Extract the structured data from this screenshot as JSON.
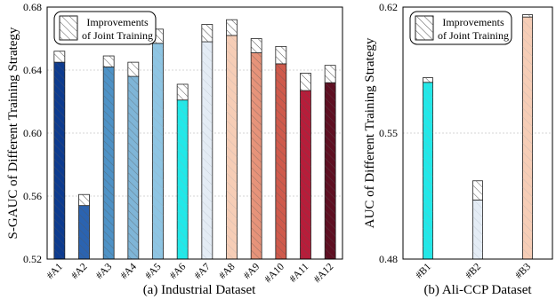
{
  "chart_data": [
    {
      "type": "bar",
      "subtitle": "(a) Industrial Dataset",
      "ylabel": "S-GAUC of Different Training Strategy",
      "ylim": [
        0.52,
        0.68
      ],
      "yticks": [
        "0.52",
        "0.56",
        "0.60",
        "0.64",
        "0.68"
      ],
      "categories": [
        "#A1",
        "#A2",
        "#A3",
        "#A4",
        "#A5",
        "#A6",
        "#A7",
        "#A8",
        "#A9",
        "#A10",
        "#A11",
        "#A12"
      ],
      "series": [
        {
          "role": "base",
          "values": [
            0.645,
            0.554,
            0.642,
            0.636,
            0.657,
            0.621,
            0.658,
            0.662,
            0.651,
            0.644,
            0.627,
            0.632
          ]
        },
        {
          "role": "improvement",
          "name": "Improvements of Joint Training",
          "values": [
            0.652,
            0.561,
            0.649,
            0.645,
            0.666,
            0.631,
            0.669,
            0.672,
            0.66,
            0.655,
            0.638,
            0.643
          ]
        }
      ],
      "colors": [
        "#0d3b8f",
        "#2b63b0",
        "#4e92c6",
        "#7fb5d7",
        "#8ec5e3",
        "#22e8e8",
        "#e4ecf5",
        "#f6cdb6",
        "#e6937a",
        "#cf5a4c",
        "#b71d3a",
        "#5e0f22"
      ],
      "legend": {
        "position": "top-left",
        "label_line1": "Improvements",
        "label_line2": "of Joint Training"
      },
      "grid": true
    },
    {
      "type": "bar",
      "subtitle": "(b) Ali-CCP Dataset",
      "ylabel": "AUC of Different Training Strategy",
      "ylim": [
        0.48,
        0.62
      ],
      "yticks": [
        "0.48",
        "0.55",
        "0.62"
      ],
      "categories": [
        "#B1",
        "#B2",
        "#B3"
      ],
      "series": [
        {
          "role": "base",
          "values": [
            0.5782,
            0.5128,
            0.6145
          ]
        },
        {
          "role": "improvement",
          "name": "Improvements of Joint Training",
          "values": [
            0.5808,
            0.5235,
            0.6158
          ]
        }
      ],
      "colors": [
        "#22e8e8",
        "#e4ecf5",
        "#f6cdb6"
      ],
      "legend": {
        "position": "top-left",
        "label_line1": "Improvements",
        "label_line2": "of Joint Training"
      },
      "grid": true
    }
  ]
}
